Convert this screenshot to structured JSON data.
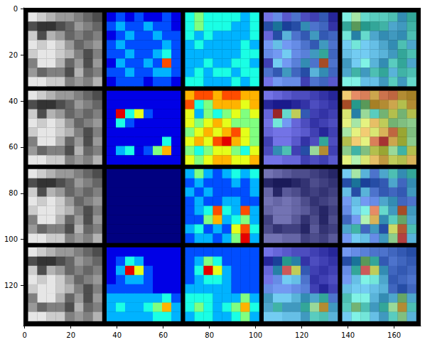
{
  "chart_data": {
    "type": "image_grid",
    "xlim": [
      -0.5,
      171.5
    ],
    "ylim": [
      137.5,
      -0.5
    ],
    "xticks": [
      0,
      20,
      40,
      60,
      80,
      100,
      120,
      140,
      160
    ],
    "yticks": [
      0,
      20,
      40,
      60,
      80,
      100,
      120
    ],
    "clim": [
      0,
      1
    ],
    "image": [
      [
        0.9,
        0.8,
        0.7,
        0.6,
        0.6,
        0.5,
        0.4,
        0.3
      ],
      [
        0.3,
        0.2,
        0.2,
        0.3,
        0.4,
        0.6,
        0.5,
        0.4
      ],
      [
        0.8,
        0.3,
        0.7,
        0.6,
        0.4,
        0.5,
        0.4,
        0.5
      ],
      [
        0.9,
        0.8,
        0.9,
        0.8,
        0.6,
        0.4,
        0.5,
        0.6
      ],
      [
        0.8,
        0.9,
        0.9,
        0.8,
        0.7,
        0.5,
        0.3,
        0.5
      ],
      [
        0.5,
        0.9,
        0.9,
        0.7,
        0.4,
        0.6,
        0.3,
        0.6
      ],
      [
        0.6,
        0.4,
        0.5,
        0.5,
        0.3,
        0.7,
        0.4,
        0.5
      ],
      [
        0.9,
        0.9,
        0.8,
        0.8,
        0.5,
        0.6,
        0.5,
        0.7
      ]
    ],
    "rows": [
      {
        "maps": [
          [
            [
              0.1,
              0.2,
              0.1,
              0.2,
              0.1,
              0.1,
              0.2,
              0.1
            ],
            [
              0.2,
              0.3,
              0.2,
              0.2,
              0.3,
              0.2,
              0.2,
              0.1
            ],
            [
              0.1,
              0.2,
              0.3,
              0.2,
              0.2,
              0.3,
              0.2,
              0.2
            ],
            [
              0.2,
              0.3,
              0.2,
              0.2,
              0.2,
              0.2,
              0.3,
              0.2
            ],
            [
              0.2,
              0.2,
              0.3,
              0.2,
              0.2,
              0.3,
              0.4,
              0.2
            ],
            [
              0.1,
              0.3,
              0.2,
              0.2,
              0.3,
              0.2,
              0.8,
              0.2
            ],
            [
              0.2,
              0.2,
              0.3,
              0.2,
              0.2,
              0.3,
              0.3,
              0.2
            ],
            [
              0.1,
              0.2,
              0.2,
              0.2,
              0.1,
              0.2,
              0.2,
              0.1
            ]
          ],
          [
            [
              0.4,
              0.5,
              0.4,
              0.4,
              0.4,
              0.4,
              0.3,
              0.4
            ],
            [
              0.4,
              0.5,
              0.4,
              0.4,
              0.4,
              0.3,
              0.3,
              0.4
            ],
            [
              0.4,
              0.3,
              0.4,
              0.3,
              0.3,
              0.3,
              0.3,
              0.4
            ],
            [
              0.3,
              0.4,
              0.3,
              0.3,
              0.3,
              0.3,
              0.4,
              0.3
            ],
            [
              0.3,
              0.3,
              0.3,
              0.3,
              0.3,
              0.3,
              0.4,
              0.4
            ],
            [
              0.3,
              0.3,
              0.4,
              0.3,
              0.3,
              0.4,
              0.4,
              0.3
            ],
            [
              0.3,
              0.4,
              0.3,
              0.4,
              0.4,
              0.3,
              0.4,
              0.4
            ],
            [
              0.4,
              0.4,
              0.3,
              0.3,
              0.3,
              0.4,
              0.3,
              0.4
            ]
          ]
        ]
      },
      {
        "maps": [
          [
            [
              0.1,
              0.1,
              0.1,
              0.1,
              0.1,
              0.1,
              0.1,
              0.1
            ],
            [
              0.1,
              0.1,
              0.1,
              0.1,
              0.1,
              0.1,
              0.1,
              0.1
            ],
            [
              0.1,
              0.9,
              0.4,
              0.6,
              0.2,
              0.1,
              0.1,
              0.1
            ],
            [
              0.1,
              0.4,
              0.2,
              0.1,
              0.1,
              0.1,
              0.1,
              0.1
            ],
            [
              0.1,
              0.1,
              0.1,
              0.1,
              0.1,
              0.1,
              0.1,
              0.1
            ],
            [
              0.1,
              0.1,
              0.1,
              0.1,
              0.1,
              0.1,
              0.4,
              0.1
            ],
            [
              0.1,
              0.3,
              0.4,
              0.1,
              0.2,
              0.5,
              0.7,
              0.1
            ],
            [
              0.1,
              0.1,
              0.1,
              0.1,
              0.1,
              0.1,
              0.1,
              0.1
            ]
          ],
          [
            [
              0.7,
              0.8,
              0.8,
              0.7,
              0.8,
              0.8,
              0.7,
              0.7
            ],
            [
              0.8,
              0.4,
              0.5,
              0.7,
              0.7,
              0.7,
              0.6,
              0.7
            ],
            [
              0.6,
              0.3,
              0.5,
              0.4,
              0.5,
              0.6,
              0.5,
              0.6
            ],
            [
              0.6,
              0.5,
              0.6,
              0.7,
              0.6,
              0.5,
              0.5,
              0.5
            ],
            [
              0.5,
              0.6,
              0.7,
              0.6,
              0.7,
              0.8,
              0.6,
              0.5
            ],
            [
              0.6,
              0.7,
              0.6,
              0.8,
              0.9,
              0.7,
              0.6,
              0.5
            ],
            [
              0.5,
              0.4,
              0.5,
              0.6,
              0.6,
              0.5,
              0.4,
              0.6
            ],
            [
              0.6,
              0.5,
              0.6,
              0.7,
              0.7,
              0.6,
              0.6,
              0.7
            ]
          ]
        ]
      },
      {
        "maps": [
          [
            [
              0,
              0,
              0,
              0,
              0,
              0,
              0,
              0
            ],
            [
              0,
              0,
              0,
              0,
              0,
              0,
              0,
              0
            ],
            [
              0,
              0,
              0,
              0,
              0,
              0,
              0,
              0
            ],
            [
              0,
              0,
              0,
              0,
              0,
              0,
              0,
              0
            ],
            [
              0,
              0,
              0,
              0,
              0,
              0,
              0,
              0
            ],
            [
              0,
              0,
              0,
              0,
              0,
              0,
              0,
              0
            ],
            [
              0,
              0,
              0,
              0,
              0,
              0,
              0,
              0
            ],
            [
              0,
              0,
              0,
              0,
              0,
              0,
              0,
              0
            ]
          ],
          [
            [
              0.3,
              0.5,
              0.3,
              0.2,
              0.3,
              0.4,
              0.3,
              0.4
            ],
            [
              0.2,
              0.3,
              0.2,
              0.2,
              0.2,
              0.3,
              0.2,
              0.3
            ],
            [
              0.3,
              0.2,
              0.3,
              0.2,
              0.2,
              0.2,
              0.2,
              0.3
            ],
            [
              0.2,
              0.3,
              0.2,
              0.2,
              0.3,
              0.3,
              0.2,
              0.2
            ],
            [
              0.2,
              0.3,
              0.4,
              0.8,
              0.4,
              0.3,
              0.8,
              0.3
            ],
            [
              0.2,
              0.2,
              0.5,
              0.7,
              0.3,
              0.4,
              0.5,
              0.3
            ],
            [
              0.3,
              0.4,
              0.2,
              0.3,
              0.2,
              0.6,
              0.8,
              0.4
            ],
            [
              0.2,
              0.3,
              0.3,
              0.2,
              0.3,
              0.5,
              0.9,
              0.3
            ]
          ]
        ]
      },
      {
        "maps": [
          [
            [
              0.1,
              0.1,
              0.1,
              0.1,
              0.1,
              0.1,
              0.1,
              0.1
            ],
            [
              0.1,
              0.2,
              0.4,
              0.3,
              0.1,
              0.1,
              0.1,
              0.1
            ],
            [
              0.1,
              0.3,
              0.9,
              0.6,
              0.2,
              0.1,
              0.1,
              0.1
            ],
            [
              0.1,
              0.2,
              0.3,
              0.3,
              0.2,
              0.1,
              0.1,
              0.1
            ],
            [
              0.2,
              0.2,
              0.2,
              0.2,
              0.2,
              0.1,
              0.1,
              0.1
            ],
            [
              0.3,
              0.3,
              0.3,
              0.3,
              0.3,
              0.3,
              0.4,
              0.2
            ],
            [
              0.3,
              0.4,
              0.3,
              0.3,
              0.4,
              0.5,
              0.7,
              0.3
            ],
            [
              0.3,
              0.3,
              0.3,
              0.3,
              0.3,
              0.4,
              0.4,
              0.3
            ]
          ],
          [
            [
              0.2,
              0.2,
              0.2,
              0.2,
              0.2,
              0.2,
              0.2,
              0.2
            ],
            [
              0.2,
              0.3,
              0.5,
              0.4,
              0.2,
              0.2,
              0.2,
              0.2
            ],
            [
              0.2,
              0.4,
              0.9,
              0.6,
              0.3,
              0.2,
              0.2,
              0.2
            ],
            [
              0.2,
              0.3,
              0.4,
              0.4,
              0.3,
              0.2,
              0.2,
              0.2
            ],
            [
              0.3,
              0.3,
              0.3,
              0.3,
              0.3,
              0.2,
              0.2,
              0.2
            ],
            [
              0.4,
              0.4,
              0.4,
              0.3,
              0.3,
              0.3,
              0.5,
              0.3
            ],
            [
              0.4,
              0.5,
              0.4,
              0.3,
              0.4,
              0.5,
              0.7,
              0.4
            ],
            [
              0.3,
              0.4,
              0.4,
              0.3,
              0.3,
              0.4,
              0.5,
              0.3
            ]
          ]
        ]
      }
    ]
  }
}
